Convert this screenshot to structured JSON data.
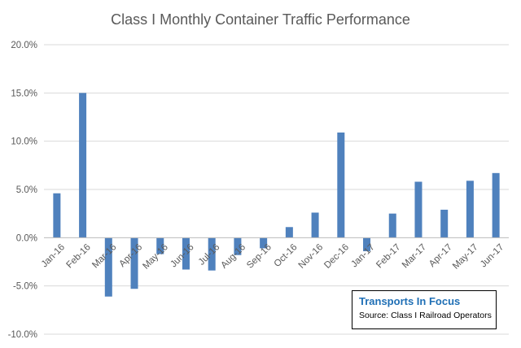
{
  "chart_data": {
    "type": "bar",
    "title": "Class I Monthly Container Traffic Performance",
    "xlabel": "",
    "ylabel": "",
    "ylim": [
      -10,
      20
    ],
    "y_ticks": [
      "20.0%",
      "15.0%",
      "10.0%",
      "5.0%",
      "0.0%",
      "-5.0%",
      "-10.0%"
    ],
    "categories": [
      "Jan-16",
      "Feb-16",
      "Mar-16",
      "Apr-16",
      "May-16",
      "Jun-16",
      "Jul-16",
      "Aug-16",
      "Sep-16",
      "Oct-16",
      "Nov-16",
      "Dec-16",
      "Jan-17",
      "Feb-17",
      "Mar-17",
      "Apr-17",
      "May-17",
      "Jun-17"
    ],
    "values": [
      4.6,
      15.0,
      -6.1,
      -5.3,
      -1.7,
      -3.3,
      -3.4,
      -1.8,
      -1.1,
      1.1,
      2.6,
      10.9,
      -1.4,
      2.5,
      5.8,
      2.9,
      5.9,
      6.7
    ],
    "grid": true,
    "bar_color": "#4f81bd"
  },
  "annotation": {
    "brand": "Transports  In Focus",
    "source": "Source: Class I Railroad Operators"
  }
}
